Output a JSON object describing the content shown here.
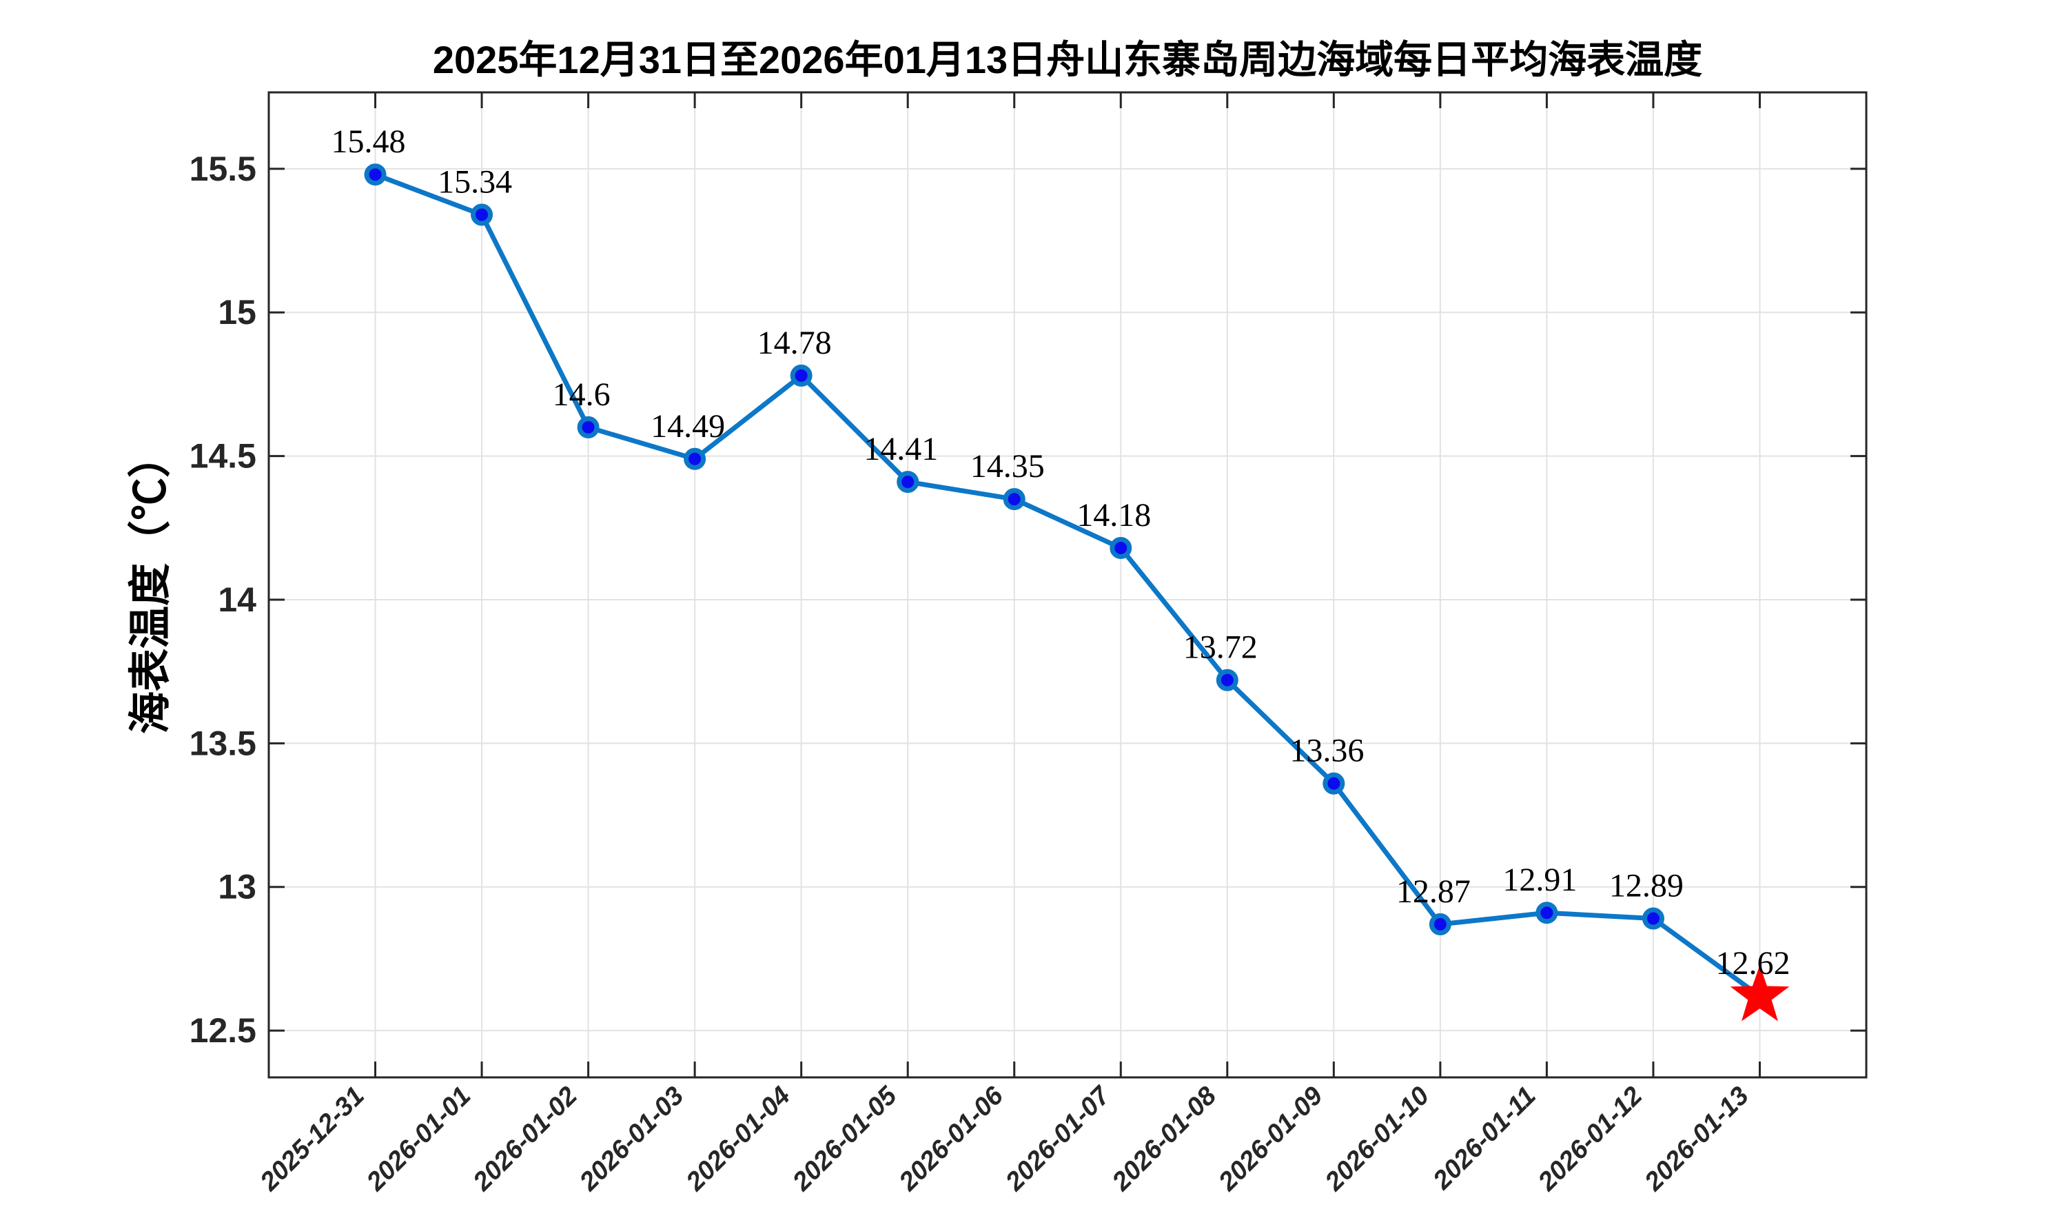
{
  "figure": {
    "title": "2025年12月31日至2026年01月13日舟山东寨岛周边海域每日平均海表温度",
    "y_axis_label": "海表温度（℃）"
  },
  "chart_data": {
    "type": "line",
    "title": "2025年12月31日至2026年01月13日舟山东寨岛周边海域每日平均海表温度",
    "xlabel": "",
    "ylabel": "海表温度（℃）",
    "categories": [
      "2025-12-31",
      "2026-01-01",
      "2026-01-02",
      "2026-01-03",
      "2026-01-04",
      "2026-01-05",
      "2026-01-06",
      "2026-01-07",
      "2026-01-08",
      "2026-01-09",
      "2026-01-10",
      "2026-01-11",
      "2026-01-12",
      "2026-01-13"
    ],
    "values": [
      15.48,
      15.34,
      14.6,
      14.49,
      14.78,
      14.41,
      14.35,
      14.18,
      13.72,
      13.36,
      12.87,
      12.91,
      12.89,
      12.62
    ],
    "point_labels": [
      "15.48",
      "15.34",
      "14.6",
      "14.49",
      "14.78",
      "14.41",
      "14.35",
      "14.18",
      "13.72",
      "13.36",
      "12.87",
      "12.91",
      "12.89",
      "12.62"
    ],
    "ytick_labels": [
      "12.5",
      "13",
      "13.5",
      "14",
      "14.5",
      "15",
      "15.5"
    ],
    "yticks": [
      12.5,
      13,
      13.5,
      14,
      14.5,
      15,
      15.5
    ],
    "ylim": [
      12.337,
      15.766
    ],
    "grid": true,
    "legend": "none",
    "line_color": "#0d77c8",
    "marker_face_color": "#0b0bf0",
    "marker_edge_color": "#0d77c8",
    "last_point_marker": "red-star",
    "star_color": "#ff0000",
    "grid_color": "#e2e2e2",
    "axis_color": "#262626",
    "tick_label_color": "#262626",
    "data_label_color": "#000000"
  }
}
